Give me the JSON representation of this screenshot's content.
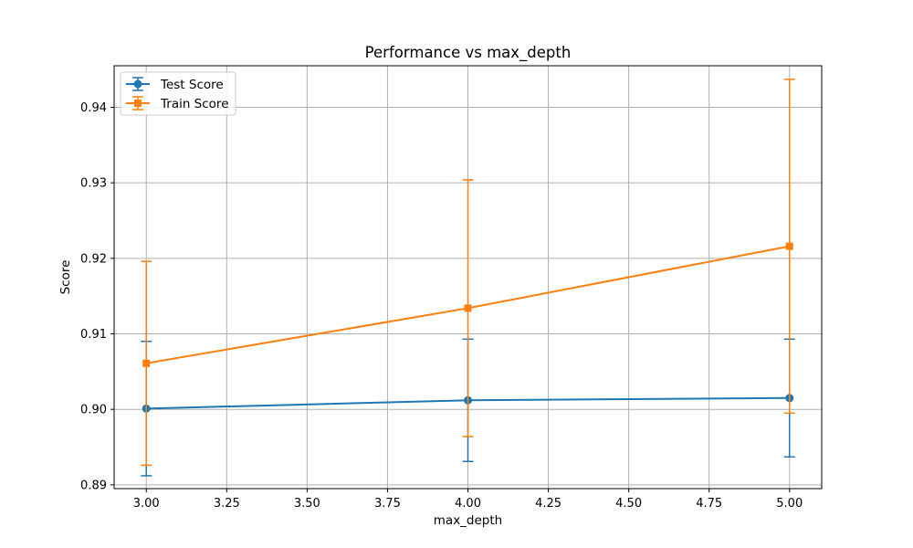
{
  "chart_data": {
    "type": "line",
    "title": "Performance vs max_depth",
    "xlabel": "max_depth",
    "ylabel": "Score",
    "x": [
      3,
      4,
      5
    ],
    "xlim": [
      2.9,
      5.1
    ],
    "ylim": [
      0.8895,
      0.9455
    ],
    "xticks": [
      3.0,
      3.25,
      3.5,
      3.75,
      4.0,
      4.25,
      4.5,
      4.75,
      5.0
    ],
    "xtick_labels": [
      "3.00",
      "3.25",
      "3.50",
      "3.75",
      "4.00",
      "4.25",
      "4.50",
      "4.75",
      "5.00"
    ],
    "yticks": [
      0.89,
      0.9,
      0.91,
      0.92,
      0.93,
      0.94
    ],
    "ytick_labels": [
      "0.89",
      "0.90",
      "0.91",
      "0.92",
      "0.93",
      "0.94"
    ],
    "grid": true,
    "legend_position": "top-left",
    "series": [
      {
        "name": "Test Score",
        "color": "#1f77b4",
        "marker": "circle",
        "values": [
          0.9001,
          0.9012,
          0.9015
        ],
        "errors": [
          0.0089,
          0.0081,
          0.0078
        ]
      },
      {
        "name": "Train Score",
        "color": "#ff7f0e",
        "marker": "square",
        "values": [
          0.9061,
          0.9134,
          0.9216
        ],
        "errors": [
          0.0135,
          0.017,
          0.0221
        ]
      }
    ]
  }
}
